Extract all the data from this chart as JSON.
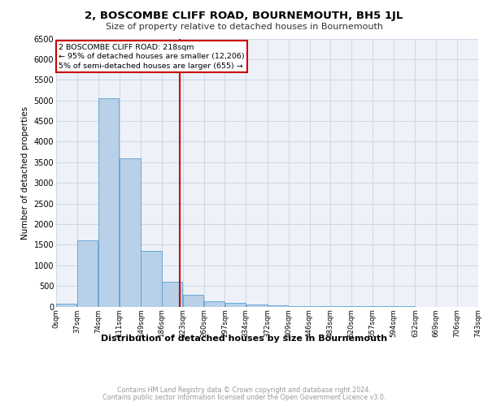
{
  "title": "2, BOSCOMBE CLIFF ROAD, BOURNEMOUTH, BH5 1JL",
  "subtitle": "Size of property relative to detached houses in Bournemouth",
  "xlabel": "Distribution of detached houses by size in Bournemouth",
  "ylabel": "Number of detached properties",
  "footnote1": "Contains HM Land Registry data © Crown copyright and database right 2024.",
  "footnote2": "Contains public sector information licensed under the Open Government Licence v3.0.",
  "annotation_line1": "2 BOSCOMBE CLIFF ROAD: 218sqm",
  "annotation_line2": "← 95% of detached houses are smaller (12,206)",
  "annotation_line3": "5% of semi-detached houses are larger (655) →",
  "property_size": 218,
  "bar_color": "#b8d0e8",
  "bar_edge_color": "#5a9fd4",
  "red_line_color": "#cc0000",
  "annotation_box_color": "#cc0000",
  "grid_color": "#d0d8e8",
  "background_color": "#eef2f8",
  "bin_edges": [
    0,
    37,
    74,
    111,
    149,
    186,
    223,
    260,
    297,
    334,
    372,
    409,
    446,
    483,
    520,
    557,
    594,
    632,
    669,
    706,
    743
  ],
  "bin_labels": [
    "0sqm",
    "37sqm",
    "74sqm",
    "111sqm",
    "149sqm",
    "186sqm",
    "223sqm",
    "260sqm",
    "297sqm",
    "334sqm",
    "372sqm",
    "409sqm",
    "446sqm",
    "483sqm",
    "520sqm",
    "557sqm",
    "594sqm",
    "632sqm",
    "669sqm",
    "706sqm",
    "743sqm"
  ],
  "bar_heights": [
    60,
    1600,
    5050,
    3600,
    1350,
    600,
    280,
    130,
    90,
    55,
    30,
    15,
    8,
    4,
    2,
    1,
    1,
    0,
    0,
    0
  ],
  "ylim": [
    0,
    6500
  ],
  "yticks": [
    0,
    500,
    1000,
    1500,
    2000,
    2500,
    3000,
    3500,
    4000,
    4500,
    5000,
    5500,
    6000,
    6500
  ]
}
